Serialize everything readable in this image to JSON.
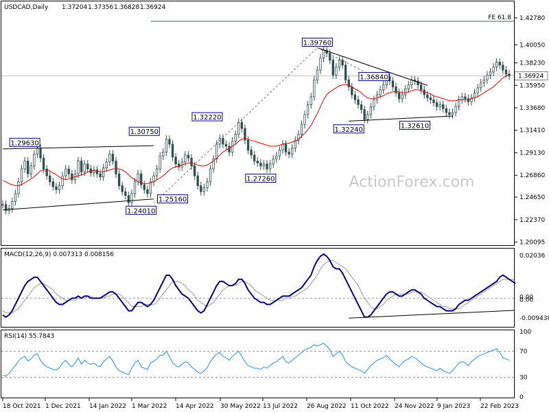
{
  "chart_data": {
    "type": "candlestick",
    "header": {
      "symbol": "USDCAD,Daily",
      "open": "1.37204",
      "high": "1.37356",
      "low": "1.36828",
      "close": "1.36924"
    },
    "price_axis": {
      "ylim": [
        1.2,
        1.4278
      ],
      "ticks": [
        "1.42780",
        "1.40050",
        "1.38230",
        "1.35950",
        "1.33680",
        "1.31410",
        "1.29130",
        "1.26860",
        "1.24650",
        "1.22370",
        "1.20095"
      ],
      "last_price": "1.36924"
    },
    "x_axis": {
      "ticks": [
        "18 Oct 2021",
        "1 Dec 2021",
        "14 Jan 2022",
        "1 Mar 2022",
        "14 Apr 2022",
        "30 May 2022",
        "13 Jul 2022",
        "26 Aug 2022",
        "11 Oct 2022",
        "24 Nov 2022",
        "9 Jan 2023",
        "22 Feb 2023"
      ]
    },
    "fib_label": "FE 61.8",
    "watermark": "ActionForex.com",
    "annotations": [
      {
        "label": "1.29630",
        "value": 1.2963
      },
      {
        "label": "1.30750",
        "value": 1.3075
      },
      {
        "label": "1.24010",
        "value": 1.2401
      },
      {
        "label": "1.25160",
        "value": 1.2516
      },
      {
        "label": "1.32220",
        "value": 1.3222
      },
      {
        "label": "1.27260",
        "value": 1.2726
      },
      {
        "label": "1.39760",
        "value": 1.3976
      },
      {
        "label": "1.36840",
        "value": 1.3684
      },
      {
        "label": "1.32240",
        "value": 1.3224
      },
      {
        "label": "1.32610",
        "value": 1.3261
      }
    ],
    "close_series": [
      1.239,
      1.233,
      1.235,
      1.242,
      1.25,
      1.262,
      1.275,
      1.283,
      1.27,
      1.278,
      1.29,
      1.296,
      1.286,
      1.275,
      1.268,
      1.262,
      1.257,
      1.254,
      1.258,
      1.268,
      1.275,
      1.27,
      1.264,
      1.27,
      1.283,
      1.272,
      1.28,
      1.275,
      1.271,
      1.274,
      1.27,
      1.267,
      1.276,
      1.282,
      1.29,
      1.283,
      1.27,
      1.258,
      1.252,
      1.248,
      1.241,
      1.25,
      1.262,
      1.27,
      1.259,
      1.254,
      1.25,
      1.262,
      1.268,
      1.275,
      1.288,
      1.292,
      1.305,
      1.3,
      1.287,
      1.28,
      1.277,
      1.282,
      1.289,
      1.286,
      1.278,
      1.268,
      1.258,
      1.252,
      1.256,
      1.262,
      1.275,
      1.285,
      1.3,
      1.306,
      1.3,
      1.298,
      1.292,
      1.303,
      1.31,
      1.322,
      1.316,
      1.304,
      1.294,
      1.289,
      1.283,
      1.281,
      1.278,
      1.28,
      1.275,
      1.28,
      1.285,
      1.288,
      1.294,
      1.3,
      1.292,
      1.29,
      1.296,
      1.304,
      1.31,
      1.32,
      1.33,
      1.34,
      1.348,
      1.365,
      1.375,
      1.387,
      1.395,
      1.392,
      1.385,
      1.37,
      1.378,
      1.385,
      1.38,
      1.365,
      1.358,
      1.35,
      1.345,
      1.34,
      1.335,
      1.325,
      1.33,
      1.338,
      1.345,
      1.35,
      1.355,
      1.36,
      1.368,
      1.364,
      1.358,
      1.352,
      1.346,
      1.35,
      1.356,
      1.36,
      1.365,
      1.364,
      1.36,
      1.355,
      1.35,
      1.347,
      1.345,
      1.342,
      1.338,
      1.34,
      1.336,
      1.332,
      1.33,
      1.332,
      1.338,
      1.345,
      1.348,
      1.346,
      1.343,
      1.347,
      1.352,
      1.357,
      1.362,
      1.365,
      1.37,
      1.373,
      1.378,
      1.383,
      1.38,
      1.375,
      1.371,
      1.369
    ],
    "ma_series": [
      1.263,
      1.262,
      1.26,
      1.259,
      1.258,
      1.258,
      1.259,
      1.261,
      1.263,
      1.265,
      1.267,
      1.27,
      1.273,
      1.274,
      1.274,
      1.273,
      1.271,
      1.269,
      1.267,
      1.265,
      1.264,
      1.265,
      1.266,
      1.267,
      1.268,
      1.269,
      1.27,
      1.272,
      1.273,
      1.273,
      1.273,
      1.272,
      1.272,
      1.273,
      1.274,
      1.275,
      1.275,
      1.275,
      1.274,
      1.272,
      1.269,
      1.266,
      1.264,
      1.262,
      1.261,
      1.26,
      1.26,
      1.261,
      1.262,
      1.264,
      1.266,
      1.268,
      1.271,
      1.274,
      1.276,
      1.277,
      1.278,
      1.279,
      1.28,
      1.281,
      1.281,
      1.28,
      1.279,
      1.278,
      1.278,
      1.279,
      1.281,
      1.283,
      1.286,
      1.289,
      1.292,
      1.294,
      1.296,
      1.298,
      1.3,
      1.303,
      1.305,
      1.306,
      1.305,
      1.304,
      1.303,
      1.302,
      1.301,
      1.3,
      1.299,
      1.298,
      1.298,
      1.298,
      1.299,
      1.3,
      1.301,
      1.301,
      1.302,
      1.303,
      1.305,
      1.308,
      1.311,
      1.315,
      1.319,
      1.325,
      1.331,
      1.338,
      1.345,
      1.35,
      1.353,
      1.355,
      1.357,
      1.359,
      1.36,
      1.36,
      1.36,
      1.358,
      1.356,
      1.354,
      1.352,
      1.349,
      1.347,
      1.346,
      1.346,
      1.347,
      1.348,
      1.349,
      1.351,
      1.352,
      1.353,
      1.353,
      1.353,
      1.352,
      1.352,
      1.353,
      1.354,
      1.355,
      1.355,
      1.354,
      1.353,
      1.352,
      1.351,
      1.349,
      1.348,
      1.347,
      1.346,
      1.345,
      1.344,
      1.344,
      1.344,
      1.345,
      1.345,
      1.345,
      1.345,
      1.346,
      1.347,
      1.348,
      1.35,
      1.352,
      1.354,
      1.356,
      1.358,
      1.361,
      1.364,
      1.367,
      1.369,
      1.371
    ],
    "macd": {
      "label": "MACD(12,26,9) 0.007313 0.008156",
      "ylim": [
        -0.013,
        0.023
      ],
      "ticks": [
        "0.02036",
        "0.00",
        "0.00",
        "-0.009438"
      ],
      "macd_series": [
        -0.008,
        -0.009,
        -0.008,
        -0.006,
        -0.003,
        0.0,
        0.003,
        0.006,
        0.008,
        0.009,
        0.01,
        0.01,
        0.008,
        0.006,
        0.004,
        0.002,
        0.0,
        -0.002,
        -0.003,
        -0.003,
        -0.002,
        -0.001,
        0.0,
        0.0,
        0.001,
        0.0,
        0.001,
        0.001,
        0.0,
        0.0,
        0.0,
        0.0,
        0.001,
        0.002,
        0.003,
        0.003,
        0.002,
        0.0,
        -0.002,
        -0.004,
        -0.006,
        -0.006,
        -0.004,
        -0.002,
        -0.002,
        -0.003,
        -0.004,
        -0.003,
        -0.001,
        0.002,
        0.005,
        0.008,
        0.011,
        0.011,
        0.009,
        0.006,
        0.004,
        0.002,
        0.001,
        0.0,
        -0.002,
        -0.004,
        -0.006,
        -0.007,
        -0.006,
        -0.003,
        0.0,
        0.003,
        0.006,
        0.008,
        0.008,
        0.007,
        0.006,
        0.006,
        0.007,
        0.009,
        0.009,
        0.007,
        0.004,
        0.002,
        0.0,
        -0.001,
        -0.002,
        -0.002,
        -0.003,
        -0.003,
        -0.002,
        -0.001,
        0.0,
        0.001,
        0.001,
        0.001,
        0.002,
        0.003,
        0.004,
        0.005,
        0.007,
        0.009,
        0.011,
        0.015,
        0.018,
        0.02,
        0.021,
        0.02,
        0.018,
        0.015,
        0.014,
        0.014,
        0.012,
        0.009,
        0.006,
        0.003,
        0.0,
        -0.003,
        -0.006,
        -0.009,
        -0.009,
        -0.008,
        -0.006,
        -0.004,
        -0.002,
        0.0,
        0.002,
        0.003,
        0.003,
        0.002,
        0.001,
        0.001,
        0.002,
        0.003,
        0.004,
        0.004,
        0.003,
        0.002,
        0.0,
        -0.001,
        -0.002,
        -0.003,
        -0.004,
        -0.004,
        -0.005,
        -0.006,
        -0.006,
        -0.006,
        -0.005,
        -0.003,
        -0.002,
        -0.001,
        -0.001,
        0.0,
        0.001,
        0.002,
        0.003,
        0.004,
        0.005,
        0.006,
        0.007,
        0.008,
        0.01,
        0.011,
        0.01,
        0.009,
        0.008,
        0.007
      ],
      "signal_series": [
        -0.006,
        -0.007,
        -0.007,
        -0.007,
        -0.006,
        -0.005,
        -0.003,
        -0.001,
        0.001,
        0.003,
        0.005,
        0.006,
        0.007,
        0.007,
        0.006,
        0.005,
        0.004,
        0.002,
        0.001,
        0.0,
        -0.001,
        -0.001,
        -0.001,
        -0.001,
        0.0,
        0.0,
        0.0,
        0.001,
        0.001,
        0.0,
        0.0,
        0.0,
        0.0,
        0.001,
        0.001,
        0.002,
        0.002,
        0.002,
        0.001,
        -0.001,
        -0.002,
        -0.004,
        -0.004,
        -0.004,
        -0.004,
        -0.003,
        -0.003,
        -0.003,
        -0.003,
        -0.002,
        0.0,
        0.002,
        0.004,
        0.006,
        0.008,
        0.008,
        0.008,
        0.007,
        0.006,
        0.004,
        0.003,
        0.001,
        -0.001,
        -0.002,
        -0.003,
        -0.004,
        -0.003,
        -0.002,
        0.0,
        0.002,
        0.004,
        0.005,
        0.006,
        0.006,
        0.006,
        0.007,
        0.008,
        0.008,
        0.007,
        0.006,
        0.004,
        0.003,
        0.002,
        0.001,
        0.0,
        -0.001,
        -0.001,
        -0.001,
        -0.001,
        -0.001,
        0.0,
        0.0,
        0.001,
        0.001,
        0.002,
        0.003,
        0.004,
        0.005,
        0.007,
        0.009,
        0.011,
        0.014,
        0.016,
        0.017,
        0.018,
        0.018,
        0.017,
        0.016,
        0.015,
        0.014,
        0.012,
        0.01,
        0.008,
        0.006,
        0.003,
        0.0,
        -0.002,
        -0.004,
        -0.005,
        -0.005,
        -0.004,
        -0.003,
        -0.001,
        0.0,
        0.001,
        0.002,
        0.002,
        0.002,
        0.002,
        0.002,
        0.003,
        0.003,
        0.003,
        0.003,
        0.002,
        0.001,
        0.0,
        -0.001,
        -0.002,
        -0.003,
        -0.004,
        -0.004,
        -0.005,
        -0.005,
        -0.005,
        -0.005,
        -0.004,
        -0.003,
        -0.002,
        -0.001,
        0.0,
        0.001,
        0.002,
        0.003,
        0.004,
        0.005,
        0.006,
        0.007,
        0.008,
        0.009,
        0.009,
        0.009,
        0.009,
        0.008
      ]
    },
    "rsi": {
      "label": "RSI(14) 55.7843",
      "ylim": [
        0,
        100
      ],
      "ticks": [
        "100",
        "70",
        "30",
        "0"
      ],
      "series": [
        33,
        32,
        36,
        42,
        48,
        55,
        60,
        62,
        55,
        58,
        64,
        66,
        56,
        50,
        46,
        44,
        42,
        41,
        45,
        52,
        56,
        50,
        46,
        52,
        60,
        50,
        56,
        52,
        50,
        52,
        48,
        46,
        54,
        58,
        62,
        55,
        46,
        40,
        38,
        36,
        34,
        44,
        52,
        56,
        46,
        44,
        42,
        52,
        55,
        58,
        64,
        64,
        70,
        62,
        52,
        48,
        46,
        50,
        54,
        52,
        46,
        42,
        38,
        36,
        40,
        45,
        54,
        60,
        66,
        68,
        62,
        60,
        56,
        62,
        66,
        70,
        62,
        54,
        48,
        46,
        44,
        44,
        42,
        46,
        44,
        48,
        52,
        54,
        58,
        62,
        54,
        52,
        56,
        60,
        64,
        68,
        72,
        74,
        76,
        80,
        78,
        80,
        82,
        78,
        72,
        62,
        66,
        70,
        64,
        54,
        50,
        46,
        44,
        42,
        40,
        36,
        42,
        48,
        52,
        56,
        58,
        60,
        64,
        58,
        54,
        50,
        46,
        52,
        56,
        58,
        62,
        60,
        56,
        52,
        48,
        46,
        44,
        42,
        40,
        44,
        40,
        38,
        36,
        40,
        46,
        52,
        54,
        52,
        48,
        54,
        58,
        62,
        64,
        66,
        68,
        70,
        72,
        74,
        68,
        60,
        58,
        56
      ]
    },
    "trend_lines": [
      {
        "from": [
          0,
          1.2335
        ],
        "to": [
          48,
          1.2446
        ]
      },
      {
        "from": [
          0,
          1.2952
        ],
        "to": [
          48,
          1.2985
        ]
      },
      {
        "from": [
          100,
          1.3976
        ],
        "to": [
          135,
          1.3595
        ]
      },
      {
        "from": [
          110,
          1.3234
        ],
        "to": [
          143,
          1.3285
        ]
      }
    ],
    "fib_line": {
      "value": 1.4243,
      "from": 47
    }
  }
}
